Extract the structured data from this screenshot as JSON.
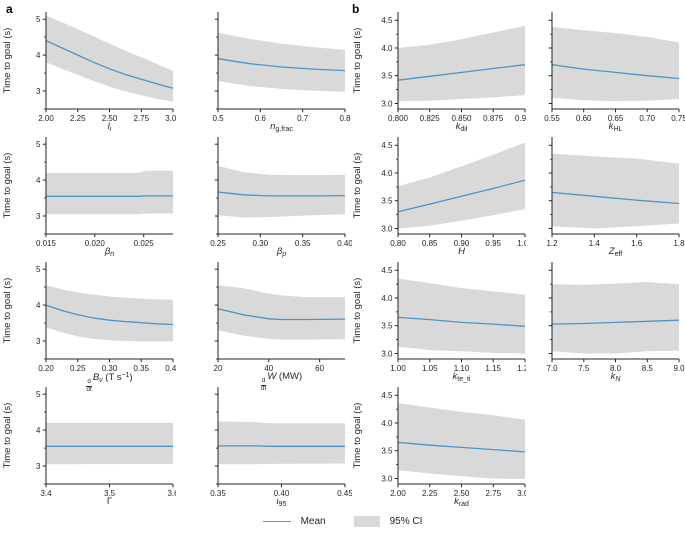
{
  "panels": {
    "a_label": "a",
    "b_label": "b"
  },
  "legend": {
    "mean": "Mean",
    "ci": "95% CI"
  },
  "colors": {
    "mean_line": "#4a96c8",
    "ci_band": "#d9d9d9",
    "axis": "#262626",
    "text": "#262626"
  },
  "axes": {
    "ylabel": "Time to goal (s)"
  },
  "panel_axes": {
    "a": {
      "ylim": [
        2.5,
        5.2
      ],
      "yticks": [
        {
          "v": 3,
          "l": "3"
        },
        {
          "v": 4,
          "l": "4"
        },
        {
          "v": 5,
          "l": "5"
        }
      ],
      "minor_step": 0.5
    },
    "b": {
      "ylim": [
        2.9,
        4.65
      ],
      "yticks": [
        {
          "v": 3.0,
          "l": "3.0"
        },
        {
          "v": 3.5,
          "l": "3.5"
        },
        {
          "v": 4.0,
          "l": "4.0"
        },
        {
          "v": 4.5,
          "l": "4.5"
        }
      ],
      "minor_step": 0.25
    }
  },
  "chart_data": [
    {
      "id": "li",
      "type": "line",
      "panel": "a",
      "row": 0,
      "col": 0,
      "xlabel": [
        {
          "t": "l",
          "it": true
        },
        {
          "t": "i",
          "sub": true,
          "it": true
        }
      ],
      "xlim": [
        2.0,
        3.0
      ],
      "xticks": [
        {
          "v": 2.0,
          "l": "2.00"
        },
        {
          "v": 2.25,
          "l": "2.25"
        },
        {
          "v": 2.5,
          "l": "2.50"
        },
        {
          "v": 2.75,
          "l": "2.75"
        },
        {
          "v": 3.0,
          "l": "3.00"
        }
      ],
      "x": [
        2.0,
        2.125,
        2.25,
        2.375,
        2.5,
        2.625,
        2.75,
        2.875,
        3.0
      ],
      "mean": [
        4.4,
        4.2,
        4.0,
        3.8,
        3.62,
        3.46,
        3.33,
        3.2,
        3.08
      ],
      "ci_hi": [
        5.1,
        4.92,
        4.72,
        4.52,
        4.32,
        4.12,
        3.94,
        3.75,
        3.56
      ],
      "ci_lo": [
        3.8,
        3.62,
        3.45,
        3.28,
        3.12,
        2.99,
        2.88,
        2.78,
        2.7
      ]
    },
    {
      "id": "ngfrac",
      "type": "line",
      "panel": "a",
      "row": 0,
      "col": 1,
      "xlabel": [
        {
          "t": "n",
          "it": true
        },
        {
          "t": "g,frac",
          "sub": true
        }
      ],
      "xlim": [
        0.5,
        0.8
      ],
      "xticks": [
        {
          "v": 0.5,
          "l": "0.5"
        },
        {
          "v": 0.6,
          "l": "0.6"
        },
        {
          "v": 0.7,
          "l": "0.7"
        },
        {
          "v": 0.8,
          "l": "0.8"
        }
      ],
      "x": [
        0.5,
        0.575,
        0.65,
        0.725,
        0.8
      ],
      "mean": [
        3.9,
        3.76,
        3.67,
        3.61,
        3.57
      ],
      "ci_hi": [
        4.62,
        4.45,
        4.32,
        4.22,
        4.15
      ],
      "ci_lo": [
        3.28,
        3.14,
        3.06,
        3.01,
        2.98
      ]
    },
    {
      "id": "betan",
      "type": "line",
      "panel": "a",
      "row": 1,
      "col": 0,
      "xlabel": [
        {
          "t": "β",
          "it": true
        },
        {
          "t": "n",
          "sub": true,
          "it": true
        }
      ],
      "xlim": [
        0.015,
        0.028
      ],
      "xticks": [
        {
          "v": 0.015,
          "l": "0.015"
        },
        {
          "v": 0.02,
          "l": "0.020"
        },
        {
          "v": 0.025,
          "l": "0.025"
        }
      ],
      "x": [
        0.015,
        0.0228,
        0.0245,
        0.0252,
        0.028
      ],
      "mean": [
        3.55,
        3.55,
        3.55,
        3.56,
        3.56
      ],
      "ci_hi": [
        4.2,
        4.2,
        4.2,
        4.26,
        4.26
      ],
      "ci_lo": [
        3.05,
        3.05,
        3.05,
        3.07,
        3.07
      ]
    },
    {
      "id": "betap",
      "type": "line",
      "panel": "a",
      "row": 1,
      "col": 1,
      "xlabel": [
        {
          "t": "β",
          "it": true
        },
        {
          "t": "p",
          "sub": true,
          "it": true
        }
      ],
      "xlim": [
        0.25,
        0.4
      ],
      "xticks": [
        {
          "v": 0.25,
          "l": "0.25"
        },
        {
          "v": 0.3,
          "l": "0.30"
        },
        {
          "v": 0.35,
          "l": "0.35"
        },
        {
          "v": 0.4,
          "l": "0.40"
        }
      ],
      "x": [
        0.25,
        0.28,
        0.31,
        0.34,
        0.37,
        0.4
      ],
      "mean": [
        3.67,
        3.59,
        3.56,
        3.56,
        3.56,
        3.57
      ],
      "ci_hi": [
        4.4,
        4.22,
        4.15,
        4.14,
        4.14,
        4.15
      ],
      "ci_lo": [
        3.02,
        2.96,
        2.97,
        3.0,
        3.03,
        3.05
      ]
    },
    {
      "id": "dbv",
      "type": "line",
      "panel": "a",
      "row": 2,
      "col": 0,
      "xlabel": [
        {
          "frac": [
            "d",
            "dt"
          ]
        },
        {
          "t": "B",
          "it": true
        },
        {
          "t": "v",
          "sub": true,
          "it": true
        },
        {
          "t": " (T s"
        },
        {
          "t": "−1",
          "sup": true
        },
        {
          "t": ")"
        }
      ],
      "xlim": [
        0.2,
        0.4
      ],
      "xticks": [
        {
          "v": 0.2,
          "l": "0.20"
        },
        {
          "v": 0.25,
          "l": "0.25"
        },
        {
          "v": 0.3,
          "l": "0.30"
        },
        {
          "v": 0.35,
          "l": "0.35"
        },
        {
          "v": 0.4,
          "l": "0.40"
        }
      ],
      "x": [
        0.2,
        0.225,
        0.25,
        0.275,
        0.3,
        0.325,
        0.35,
        0.375,
        0.4
      ],
      "mean": [
        4.0,
        3.85,
        3.73,
        3.64,
        3.58,
        3.54,
        3.51,
        3.48,
        3.46
      ],
      "ci_hi": [
        4.55,
        4.44,
        4.35,
        4.29,
        4.24,
        4.21,
        4.18,
        4.16,
        4.15
      ],
      "ci_lo": [
        3.38,
        3.24,
        3.13,
        3.06,
        3.02,
        3.0,
        2.99,
        2.99,
        2.99
      ]
    },
    {
      "id": "dw",
      "type": "line",
      "panel": "a",
      "row": 2,
      "col": 1,
      "xlabel": [
        {
          "frac": [
            "d",
            "dt"
          ]
        },
        {
          "t": "W",
          "it": true
        },
        {
          "t": " (MW)"
        }
      ],
      "xlim": [
        20,
        70
      ],
      "xticks": [
        {
          "v": 20,
          "l": "20"
        },
        {
          "v": 40,
          "l": "40"
        },
        {
          "v": 60,
          "l": "60"
        }
      ],
      "x": [
        20,
        30,
        40,
        45,
        55,
        70
      ],
      "mean": [
        3.9,
        3.73,
        3.62,
        3.6,
        3.6,
        3.61
      ],
      "ci_hi": [
        4.55,
        4.47,
        4.32,
        4.27,
        4.22,
        4.22
      ],
      "ci_lo": [
        3.3,
        3.15,
        3.06,
        3.04,
        3.04,
        3.05
      ]
    },
    {
      "id": "gamma",
      "type": "line",
      "panel": "a",
      "row": 3,
      "col": 0,
      "xlabel": [
        {
          "t": "Γ"
        }
      ],
      "xlim": [
        3.4,
        3.6
      ],
      "xticks": [
        {
          "v": 3.4,
          "l": "3.4"
        },
        {
          "v": 3.5,
          "l": "3.5"
        },
        {
          "v": 3.6,
          "l": "3.6"
        }
      ],
      "x": [
        3.4,
        3.6
      ],
      "mean": [
        3.55,
        3.55
      ],
      "ci_hi": [
        4.2,
        4.2
      ],
      "ci_lo": [
        3.05,
        3.06
      ]
    },
    {
      "id": "iota95",
      "type": "line",
      "panel": "a",
      "row": 3,
      "col": 1,
      "xlabel": [
        {
          "t": "ι",
          "it": true
        },
        {
          "t": "95",
          "sub": true
        }
      ],
      "xlim": [
        0.35,
        0.45
      ],
      "xticks": [
        {
          "v": 0.35,
          "l": "0.35"
        },
        {
          "v": 0.4,
          "l": "0.40"
        },
        {
          "v": 0.45,
          "l": "0.45"
        }
      ],
      "x": [
        0.35,
        0.38,
        0.39,
        0.45
      ],
      "mean": [
        3.56,
        3.56,
        3.55,
        3.55
      ],
      "ci_hi": [
        4.24,
        4.22,
        4.19,
        4.19
      ],
      "ci_lo": [
        3.05,
        3.05,
        3.06,
        3.07
      ]
    },
    {
      "id": "kdil",
      "type": "line",
      "panel": "b",
      "row": 0,
      "col": 0,
      "xlabel": [
        {
          "t": "k",
          "it": true
        },
        {
          "t": "dil",
          "sub": true
        }
      ],
      "xlim": [
        0.8,
        0.9
      ],
      "xticks": [
        {
          "v": 0.8,
          "l": "0.800"
        },
        {
          "v": 0.825,
          "l": "0.825"
        },
        {
          "v": 0.85,
          "l": "0.850"
        },
        {
          "v": 0.875,
          "l": "0.875"
        },
        {
          "v": 0.9,
          "l": "0.900"
        }
      ],
      "x": [
        0.8,
        0.825,
        0.85,
        0.875,
        0.9
      ],
      "mean": [
        3.42,
        3.49,
        3.56,
        3.63,
        3.7
      ],
      "ci_hi": [
        4.0,
        4.06,
        4.16,
        4.28,
        4.4
      ],
      "ci_lo": [
        3.04,
        3.05,
        3.08,
        3.11,
        3.15
      ]
    },
    {
      "id": "khl",
      "type": "line",
      "panel": "b",
      "row": 0,
      "col": 1,
      "xlabel": [
        {
          "t": "k",
          "it": true
        },
        {
          "t": "HL",
          "sub": true
        }
      ],
      "xlim": [
        0.55,
        0.75
      ],
      "xticks": [
        {
          "v": 0.55,
          "l": "0.55"
        },
        {
          "v": 0.6,
          "l": "0.60"
        },
        {
          "v": 0.65,
          "l": "0.65"
        },
        {
          "v": 0.7,
          "l": "0.70"
        },
        {
          "v": 0.75,
          "l": "0.75"
        }
      ],
      "x": [
        0.55,
        0.6,
        0.65,
        0.7,
        0.75
      ],
      "mean": [
        3.7,
        3.62,
        3.56,
        3.5,
        3.45
      ],
      "ci_hi": [
        4.38,
        4.32,
        4.27,
        4.2,
        4.1
      ],
      "ci_lo": [
        3.1,
        3.06,
        3.04,
        3.05,
        3.08
      ]
    },
    {
      "id": "H",
      "type": "line",
      "panel": "b",
      "row": 1,
      "col": 0,
      "xlabel": [
        {
          "t": "H",
          "it": true
        }
      ],
      "xlim": [
        0.8,
        1.0
      ],
      "xticks": [
        {
          "v": 0.8,
          "l": "0.80"
        },
        {
          "v": 0.85,
          "l": "0.85"
        },
        {
          "v": 0.9,
          "l": "0.90"
        },
        {
          "v": 0.95,
          "l": "0.95"
        },
        {
          "v": 1.0,
          "l": "1.00"
        }
      ],
      "x": [
        0.8,
        0.85,
        0.9,
        0.95,
        1.0
      ],
      "mean": [
        3.3,
        3.44,
        3.58,
        3.72,
        3.87
      ],
      "ci_hi": [
        3.76,
        3.92,
        4.12,
        4.33,
        4.55
      ],
      "ci_lo": [
        3.0,
        3.05,
        3.14,
        3.24,
        3.35
      ]
    },
    {
      "id": "zeff",
      "type": "line",
      "panel": "b",
      "row": 1,
      "col": 1,
      "xlabel": [
        {
          "t": "Z",
          "it": true
        },
        {
          "t": "eff",
          "sub": true
        }
      ],
      "xlim": [
        1.2,
        1.8
      ],
      "xticks": [
        {
          "v": 1.2,
          "l": "1.2"
        },
        {
          "v": 1.4,
          "l": "1.4"
        },
        {
          "v": 1.6,
          "l": "1.6"
        },
        {
          "v": 1.8,
          "l": "1.8"
        }
      ],
      "x": [
        1.2,
        1.4,
        1.6,
        1.8
      ],
      "mean": [
        3.65,
        3.58,
        3.51,
        3.45
      ],
      "ci_hi": [
        4.35,
        4.3,
        4.26,
        4.17
      ],
      "ci_lo": [
        3.04,
        3.0,
        3.04,
        3.09
      ]
    },
    {
      "id": "kteti",
      "type": "line",
      "panel": "b",
      "row": 2,
      "col": 0,
      "xlabel": [
        {
          "t": "k",
          "it": true
        },
        {
          "t": "te_ti",
          "sub": true
        }
      ],
      "xlim": [
        1.0,
        1.2
      ],
      "xticks": [
        {
          "v": 1.0,
          "l": "1.00"
        },
        {
          "v": 1.05,
          "l": "1.05"
        },
        {
          "v": 1.1,
          "l": "1.10"
        },
        {
          "v": 1.15,
          "l": "1.15"
        },
        {
          "v": 1.2,
          "l": "1.20"
        }
      ],
      "x": [
        1.0,
        1.05,
        1.1,
        1.15,
        1.2
      ],
      "mean": [
        3.65,
        3.61,
        3.56,
        3.53,
        3.49
      ],
      "ci_hi": [
        4.35,
        4.27,
        4.18,
        4.12,
        4.06
      ],
      "ci_lo": [
        3.12,
        3.06,
        3.04,
        3.01,
        3.0
      ]
    },
    {
      "id": "kn",
      "type": "line",
      "panel": "b",
      "row": 2,
      "col": 1,
      "xlabel": [
        {
          "t": "k",
          "it": true
        },
        {
          "t": "N",
          "sub": true,
          "it": true
        }
      ],
      "xlim": [
        7.0,
        9.0
      ],
      "xticks": [
        {
          "v": 7.0,
          "l": "7.0"
        },
        {
          "v": 7.5,
          "l": "7.5"
        },
        {
          "v": 8.0,
          "l": "8.0"
        },
        {
          "v": 8.5,
          "l": "8.5"
        },
        {
          "v": 9.0,
          "l": "9.0"
        }
      ],
      "x": [
        7.0,
        7.5,
        8.0,
        8.5,
        9.0
      ],
      "mean": [
        3.53,
        3.54,
        3.56,
        3.58,
        3.6
      ],
      "ci_hi": [
        4.25,
        4.24,
        4.26,
        4.29,
        4.25
      ],
      "ci_lo": [
        3.04,
        3.0,
        3.0,
        3.04,
        3.05
      ]
    },
    {
      "id": "krad",
      "type": "line",
      "panel": "b",
      "row": 3,
      "col": 0,
      "xlabel": [
        {
          "t": "k",
          "it": true
        },
        {
          "t": "rad",
          "sub": true
        }
      ],
      "xlim": [
        2.0,
        3.0
      ],
      "xticks": [
        {
          "v": 2.0,
          "l": "2.00"
        },
        {
          "v": 2.25,
          "l": "2.25"
        },
        {
          "v": 2.5,
          "l": "2.50"
        },
        {
          "v": 2.75,
          "l": "2.75"
        },
        {
          "v": 3.0,
          "l": "3.00"
        }
      ],
      "x": [
        2.0,
        2.25,
        2.5,
        2.75,
        3.0
      ],
      "mean": [
        3.65,
        3.6,
        3.56,
        3.52,
        3.48
      ],
      "ci_hi": [
        4.36,
        4.28,
        4.2,
        4.14,
        4.06
      ],
      "ci_lo": [
        3.15,
        3.09,
        3.04,
        3.0,
        2.99
      ]
    }
  ]
}
